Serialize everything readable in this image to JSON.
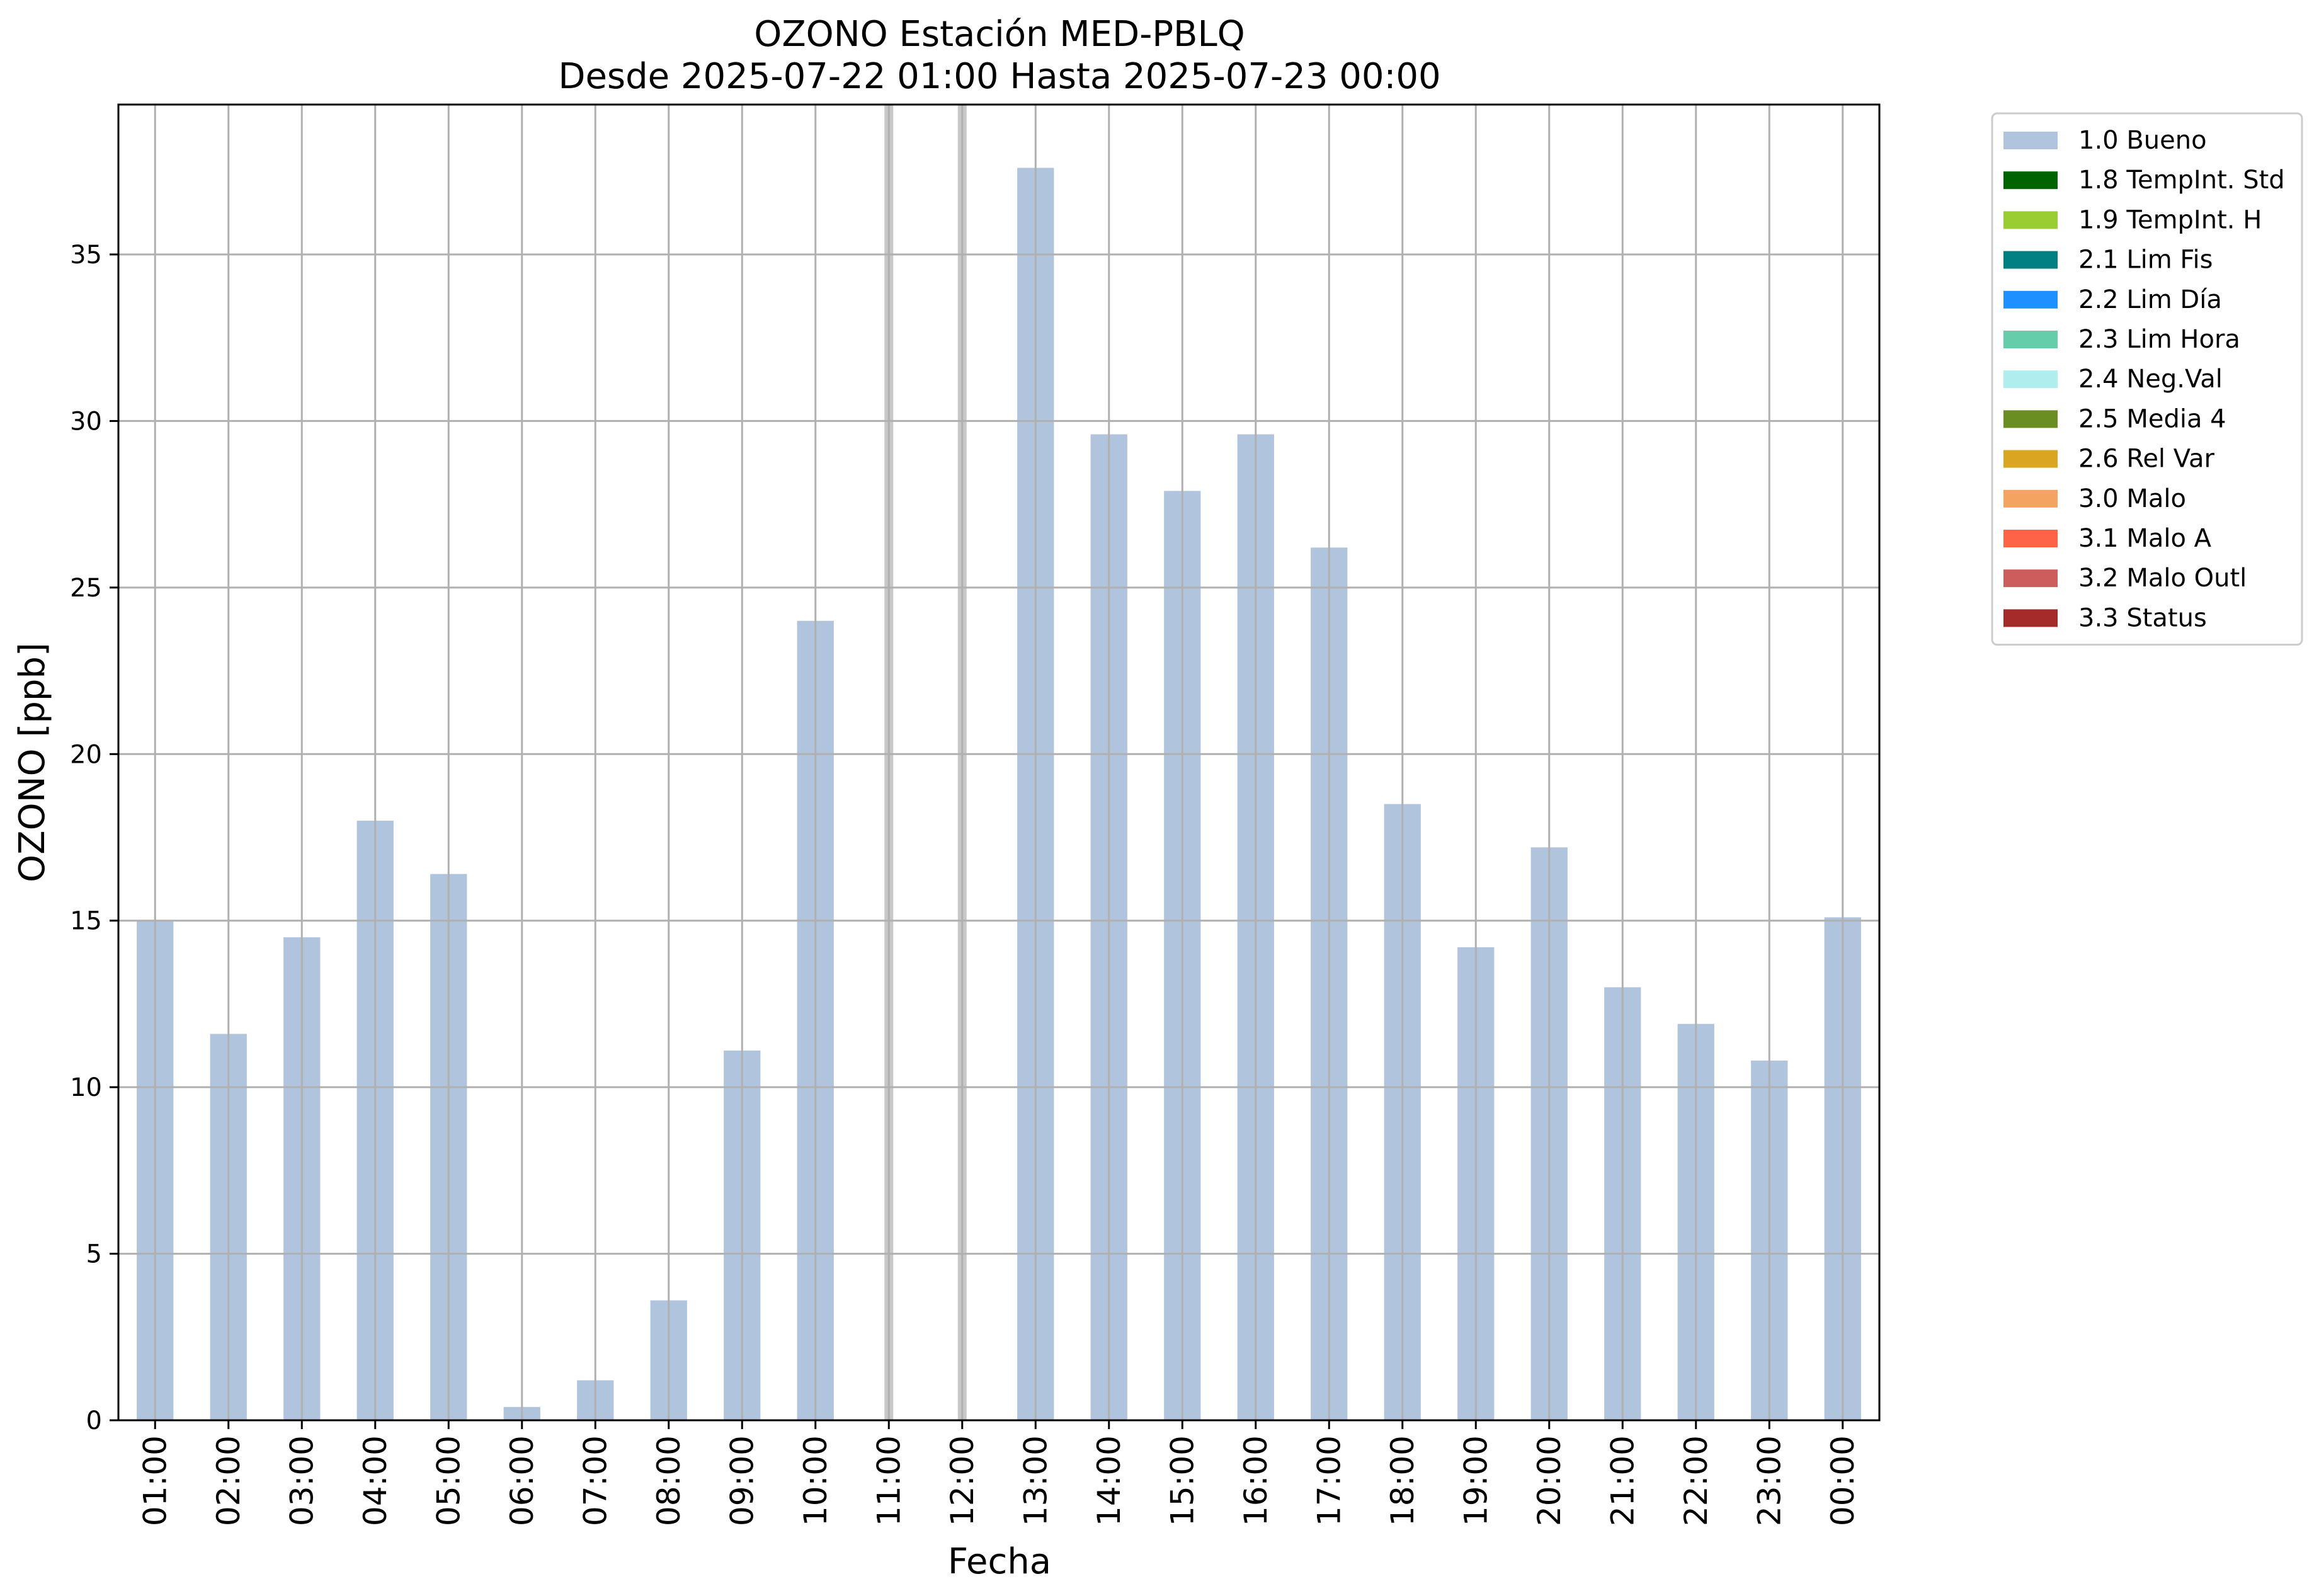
{
  "chart_data": {
    "type": "bar",
    "title_lines": [
      "OZONO Estación MED-PBLQ",
      "Desde 2025-07-22 01:00 Hasta 2025-07-23 00:00"
    ],
    "xlabel": "Fecha",
    "ylabel": "OZONO [ppb]",
    "ylim": [
      0,
      39.5
    ],
    "yticks": [
      0,
      5,
      10,
      15,
      20,
      25,
      30,
      35
    ],
    "grid": true,
    "legend_position": "outside-top-right",
    "categories": [
      "01:00",
      "02:00",
      "03:00",
      "04:00",
      "05:00",
      "06:00",
      "07:00",
      "08:00",
      "09:00",
      "10:00",
      "11:00",
      "12:00",
      "13:00",
      "14:00",
      "15:00",
      "16:00",
      "17:00",
      "18:00",
      "19:00",
      "20:00",
      "21:00",
      "22:00",
      "23:00",
      "00:00"
    ],
    "series": [
      {
        "name": "1.0 Bueno",
        "color": "#b0c4de",
        "values": [
          15.0,
          11.6,
          14.5,
          18.0,
          16.4,
          0.4,
          1.2,
          3.6,
          11.1,
          24.0,
          null,
          null,
          37.6,
          29.6,
          27.9,
          29.6,
          26.2,
          18.5,
          14.2,
          17.2,
          13.0,
          11.9,
          10.8,
          15.1
        ]
      }
    ],
    "missing_categories": [
      "11:00",
      "12:00"
    ],
    "missing_marker_color": "#c8c8c8",
    "legend": [
      {
        "label": "1.0 Bueno",
        "color": "#b0c4de"
      },
      {
        "label": "1.8 TempInt. Std",
        "color": "#006400"
      },
      {
        "label": "1.9 TempInt. H",
        "color": "#9acd32"
      },
      {
        "label": "2.1 Lim Fis",
        "color": "#008080"
      },
      {
        "label": "2.2 Lim Día",
        "color": "#1e90ff"
      },
      {
        "label": "2.3 Lim Hora",
        "color": "#66cdaa"
      },
      {
        "label": "2.4 Neg.Val",
        "color": "#afeeee"
      },
      {
        "label": "2.5 Media 4",
        "color": "#6b8e23"
      },
      {
        "label": "2.6 Rel Var",
        "color": "#daa520"
      },
      {
        "label": "3.0 Malo",
        "color": "#f4a460"
      },
      {
        "label": "3.1 Malo A",
        "color": "#ff6347"
      },
      {
        "label": "3.2 Malo Outl",
        "color": "#cd5c5c"
      },
      {
        "label": "3.3 Status",
        "color": "#a52a2a"
      }
    ]
  }
}
